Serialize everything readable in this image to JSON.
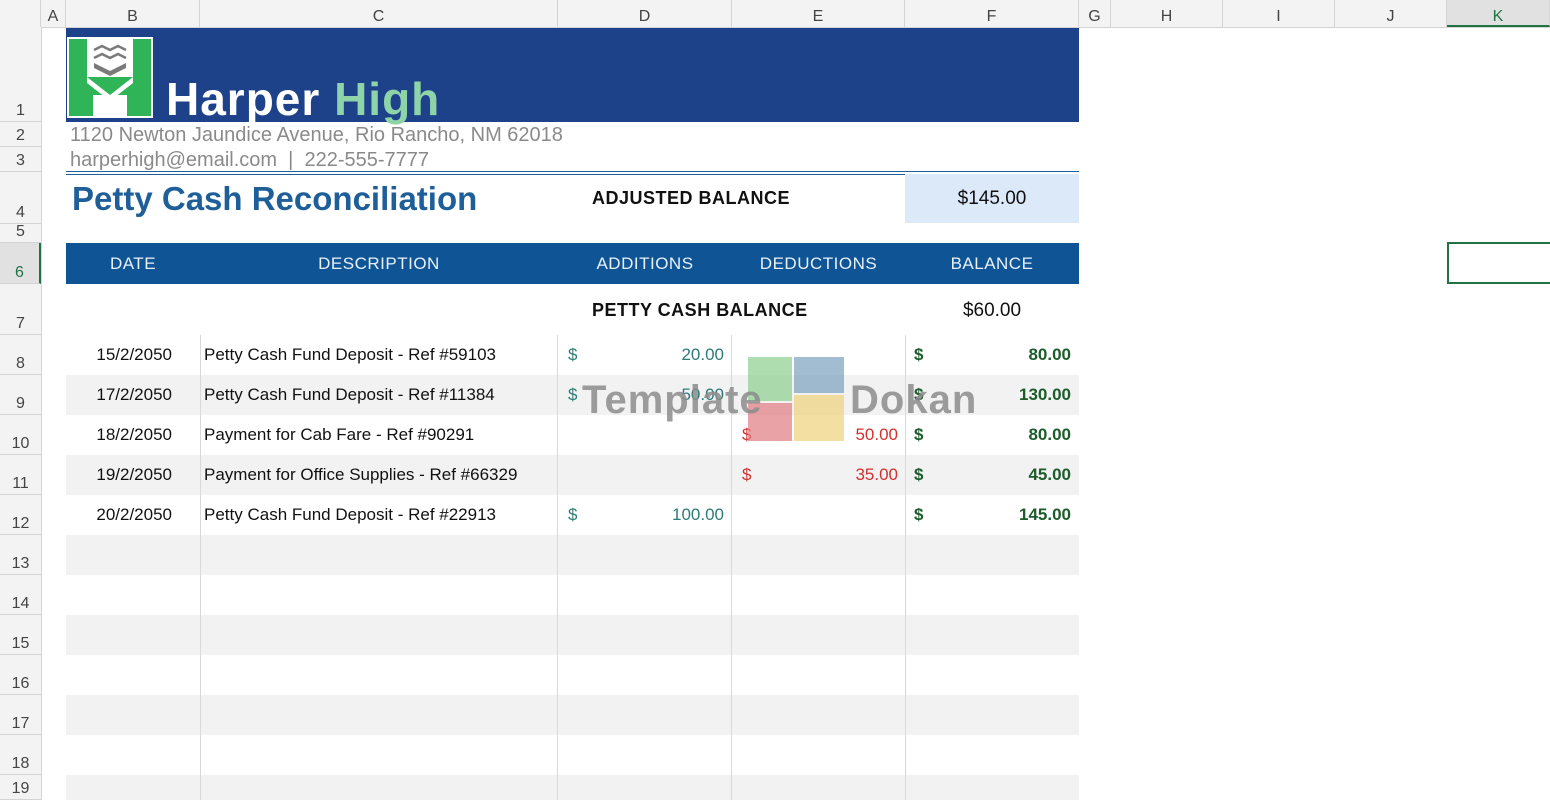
{
  "columns": [
    "A",
    "B",
    "C",
    "D",
    "E",
    "F",
    "G",
    "H",
    "I",
    "J",
    "K"
  ],
  "rows": [
    "1",
    "2",
    "3",
    "4",
    "5",
    "6",
    "7",
    "8",
    "9",
    "10",
    "11",
    "12",
    "13",
    "14",
    "15",
    "16",
    "17",
    "18",
    "19"
  ],
  "school": {
    "name_part1": "Harper",
    "name_part2": "High"
  },
  "address": "1120 Newton Jaundice Avenue, Rio Rancho, NM 62018",
  "contact": "harperhigh@email.com  |  222-555-7777",
  "doc_title": "Petty Cash Reconciliation",
  "adjusted_balance": {
    "label": "ADJUSTED BALANCE",
    "value": "$145.00"
  },
  "table": {
    "headers": [
      "DATE",
      "DESCRIPTION",
      "ADDITIONS",
      "DEDUCTIONS",
      "BALANCE"
    ],
    "petty_cash_balance": {
      "label": "PETTY CASH BALANCE",
      "value": "$60.00"
    },
    "rows": [
      {
        "date": "15/2/2050",
        "desc": "Petty Cash Fund Deposit - Ref #59103",
        "add_cur": "$",
        "add": "20.00",
        "ded_cur": "",
        "ded": "",
        "bal_cur": "$",
        "bal": "80.00"
      },
      {
        "date": "17/2/2050",
        "desc": "Petty Cash Fund Deposit - Ref #11384",
        "add_cur": "$",
        "add": "50.00",
        "ded_cur": "",
        "ded": "",
        "bal_cur": "$",
        "bal": "130.00"
      },
      {
        "date": "18/2/2050",
        "desc": "Payment for Cab Fare - Ref #90291",
        "add_cur": "",
        "add": "",
        "ded_cur": "$",
        "ded": "50.00",
        "bal_cur": "$",
        "bal": "80.00"
      },
      {
        "date": "19/2/2050",
        "desc": "Payment for Office Supplies - Ref #66329",
        "add_cur": "",
        "add": "",
        "ded_cur": "$",
        "ded": "35.00",
        "bal_cur": "$",
        "bal": "45.00"
      },
      {
        "date": "20/2/2050",
        "desc": "Petty Cash Fund Deposit - Ref #22913",
        "add_cur": "$",
        "add": "100.00",
        "ded_cur": "",
        "ded": "",
        "bal_cur": "$",
        "bal": "145.00"
      }
    ]
  },
  "watermark": {
    "left": "Template",
    "right": "Dokan"
  },
  "colors": {
    "banner": "#1d428a",
    "header": "#0f5596",
    "accent_green": "#217346",
    "logo_green": "#2fb457"
  }
}
